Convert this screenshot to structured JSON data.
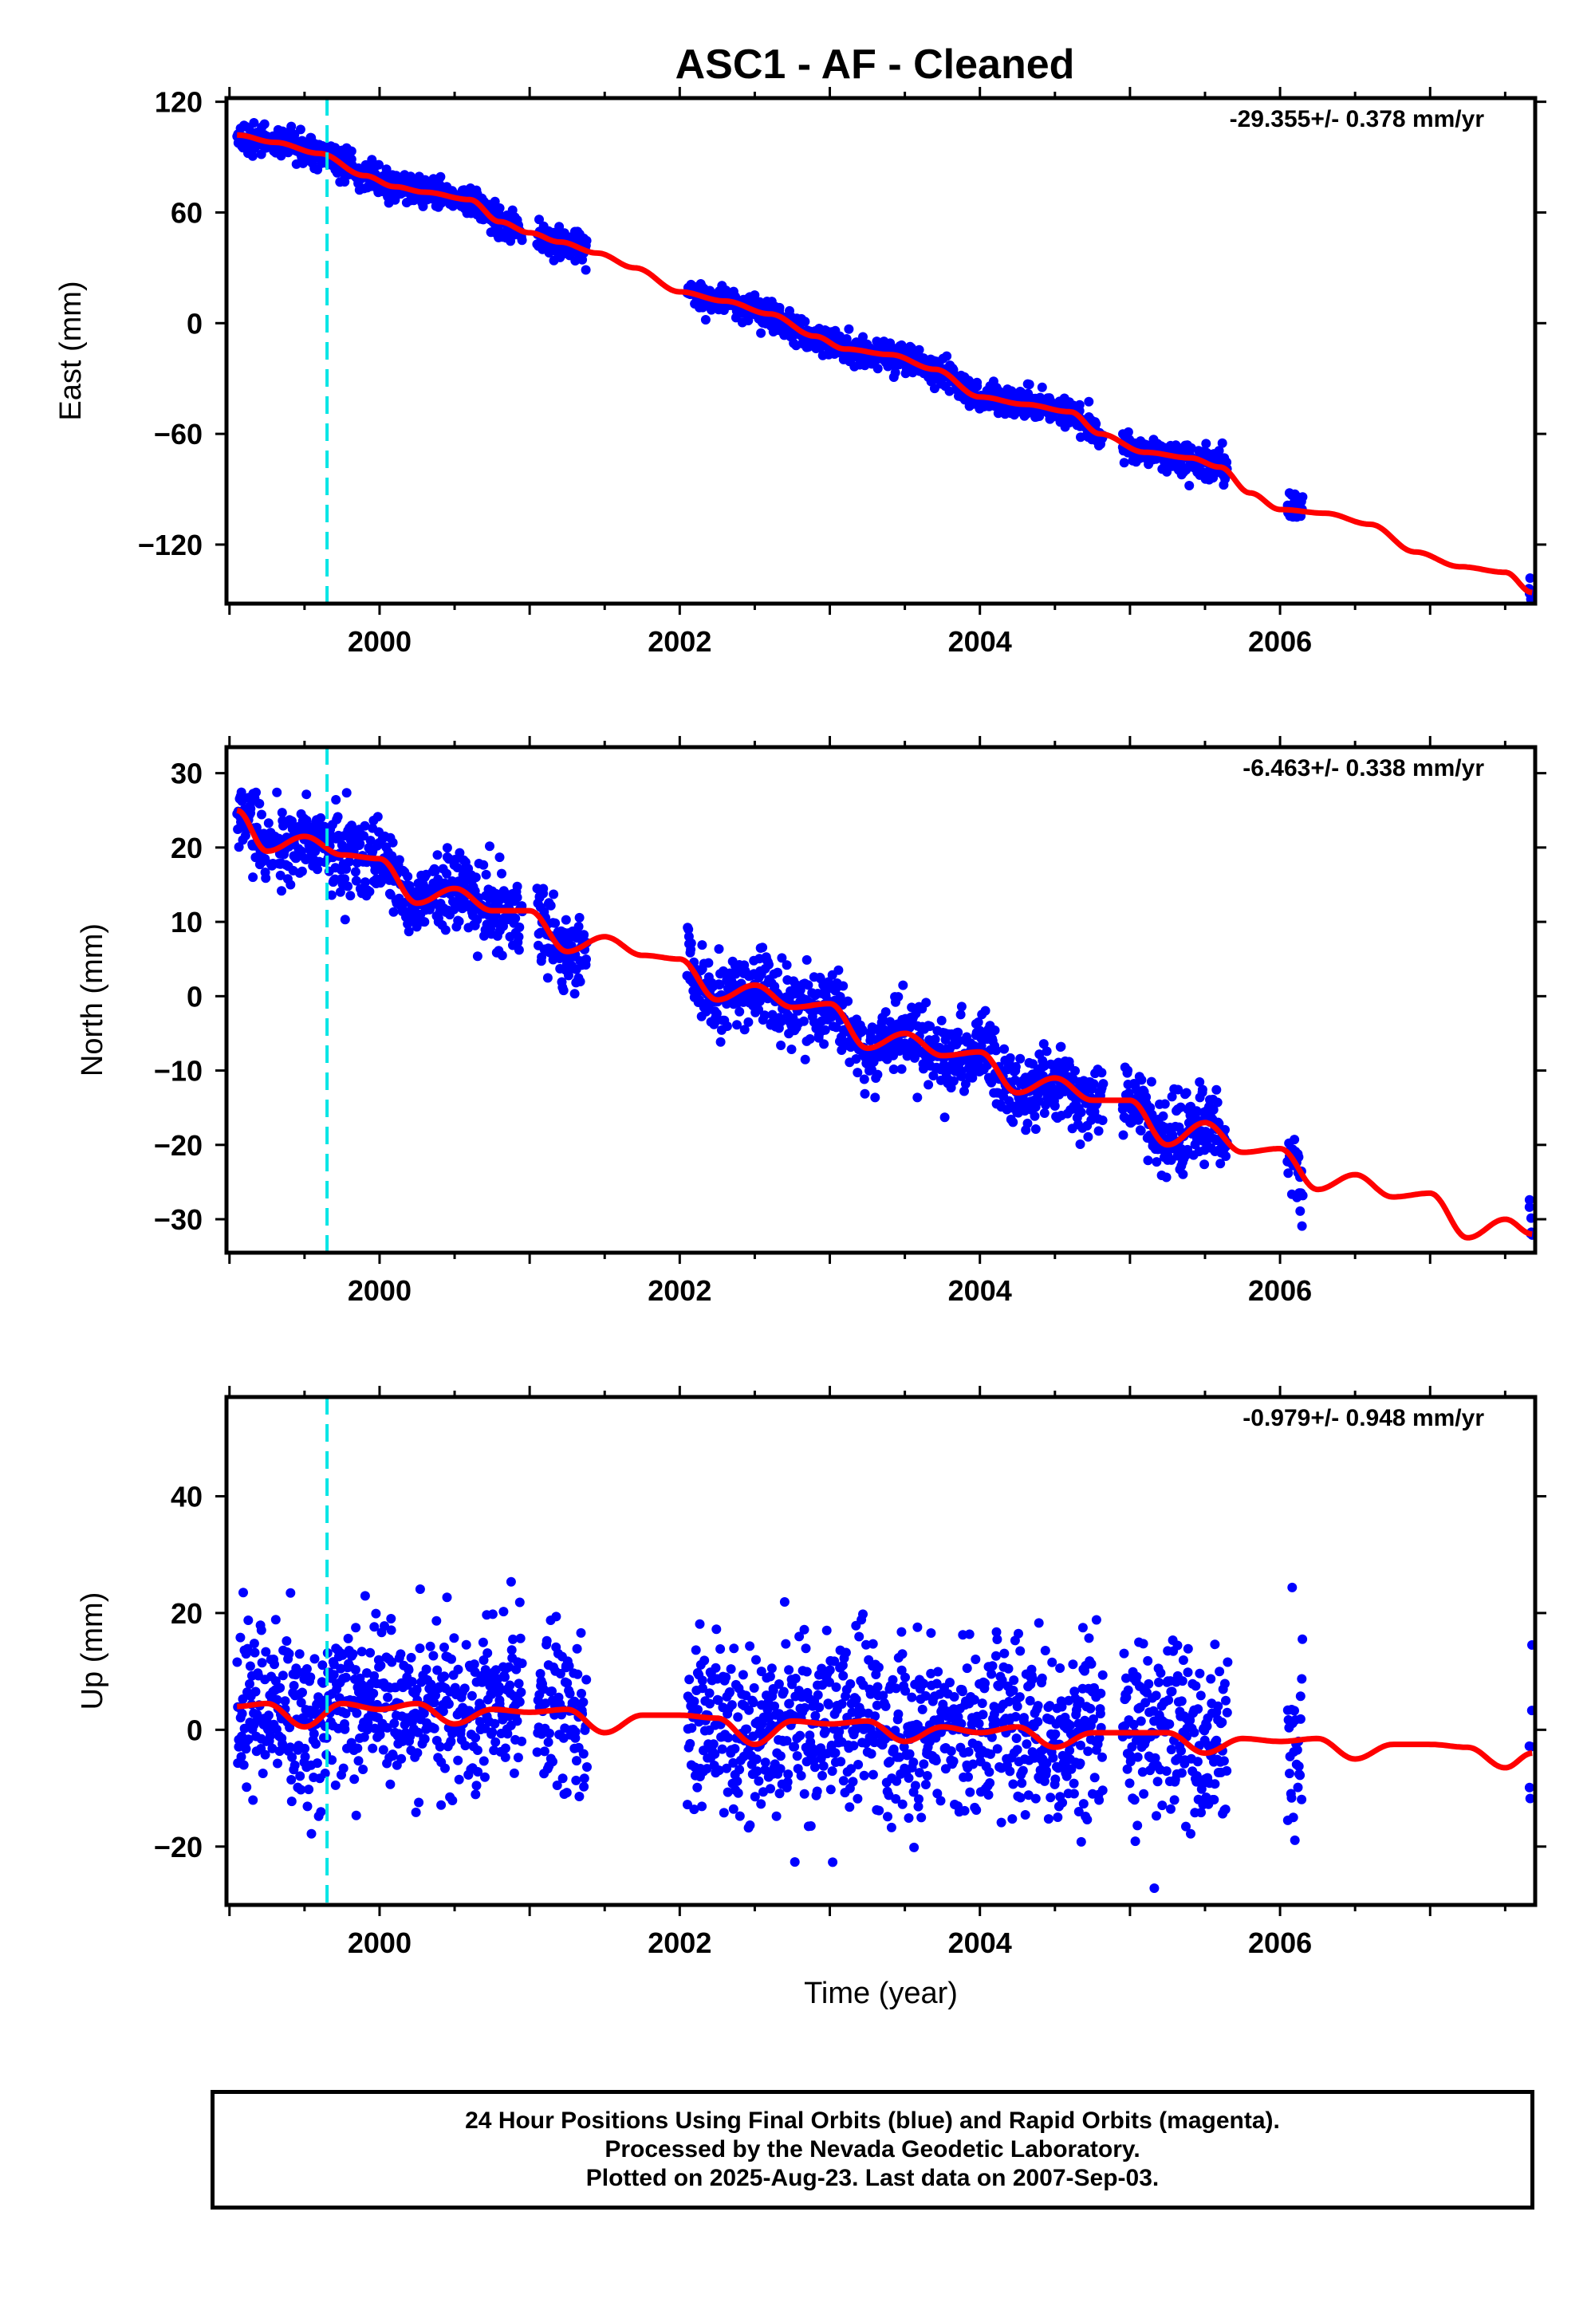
{
  "title": "ASC1  - AF - Cleaned",
  "footer": {
    "line1": "24 Hour Positions Using Final Orbits (blue) and Rapid Orbits (magenta).",
    "line2": "Processed by the Nevada Geodetic Laboratory.",
    "line3": "Plotted on 2025-Aug-23. Last data on 2007-Sep-03."
  },
  "colors": {
    "data": "#0000ff",
    "model": "#ff0000",
    "event": "#00e5e5",
    "frame": "#000000"
  },
  "chart_data": [
    {
      "type": "scatter",
      "component": "east",
      "ylabel": "East (mm)",
      "rate_label": "-29.355+/- 0.378 mm/yr",
      "xlim": [
        1998.98,
        2007.7
      ],
      "ylim": [
        -152,
        122
      ],
      "y_ticks": [
        120,
        60,
        0,
        -60,
        -120
      ],
      "y_tick_labels": [
        "120",
        "60",
        "0",
        "−60",
        "−120"
      ],
      "x_ticks": [
        2000,
        2002,
        2004,
        2006
      ],
      "x_tick_labels": [
        "2000",
        "2002",
        "2004",
        "2006"
      ],
      "event_line_x": 1999.65,
      "data_segments": [
        [
          1999.05,
          2000.95
        ],
        [
          2001.05,
          2001.38
        ],
        [
          2002.05,
          2004.82
        ],
        [
          2004.95,
          2005.65
        ],
        [
          2006.05,
          2006.15
        ],
        [
          2007.66,
          2007.68
        ]
      ],
      "scatter_sigma": 4,
      "fit": {
        "x": [
          1999.05,
          1999.3,
          1999.6,
          1999.9,
          2000.1,
          2000.3,
          2000.6,
          2000.8,
          2001.0,
          2001.2,
          2001.45,
          2001.7,
          2002.0,
          2002.3,
          2002.6,
          2002.9,
          2003.1,
          2003.4,
          2003.7,
          2004.0,
          2004.3,
          2004.6,
          2004.8,
          2005.1,
          2005.4,
          2005.6,
          2005.8,
          2006.0,
          2006.3,
          2006.6,
          2006.9,
          2007.2,
          2007.5,
          2007.68
        ],
        "y": [
          102,
          98,
          92,
          80,
          74,
          71,
          67,
          55,
          49,
          44,
          38,
          30,
          17,
          12,
          5,
          -7,
          -14,
          -17,
          -25,
          -40,
          -44,
          -48,
          -60,
          -70,
          -73,
          -78,
          -92,
          -101,
          -103,
          -109,
          -124,
          -132,
          -135,
          -146
        ]
      }
    },
    {
      "type": "scatter",
      "component": "north",
      "ylabel": "North (mm)",
      "rate_label": "-6.463+/- 0.338 mm/yr",
      "xlim": [
        1998.98,
        2007.7
      ],
      "ylim": [
        -34.5,
        33.5
      ],
      "y_ticks": [
        30,
        20,
        10,
        0,
        -10,
        -20,
        -30
      ],
      "y_tick_labels": [
        "30",
        "20",
        "10",
        "0",
        "−10",
        "−20",
        "−30"
      ],
      "x_ticks": [
        2000,
        2002,
        2004,
        2006
      ],
      "x_tick_labels": [
        "2000",
        "2002",
        "2004",
        "2006"
      ],
      "event_line_x": 1999.65,
      "data_segments": [
        [
          1999.05,
          2000.95
        ],
        [
          2001.05,
          2001.38
        ],
        [
          2002.05,
          2004.82
        ],
        [
          2004.95,
          2005.65
        ],
        [
          2006.05,
          2006.15
        ],
        [
          2007.66,
          2007.68
        ]
      ],
      "scatter_sigma": 2.6,
      "fit": {
        "x": [
          1999.05,
          1999.25,
          1999.5,
          1999.75,
          2000.0,
          2000.25,
          2000.5,
          2000.75,
          2001.0,
          2001.25,
          2001.5,
          2001.75,
          2002.0,
          2002.25,
          2002.5,
          2002.75,
          2003.0,
          2003.25,
          2003.5,
          2003.75,
          2004.0,
          2004.25,
          2004.5,
          2004.75,
          2005.0,
          2005.25,
          2005.5,
          2005.75,
          2006.0,
          2006.25,
          2006.5,
          2006.75,
          2007.0,
          2007.25,
          2007.5,
          2007.68
        ],
        "y": [
          25,
          19.5,
          21.5,
          19,
          18.5,
          12.5,
          14.5,
          11.5,
          11.5,
          6,
          8,
          5.5,
          5,
          -0.5,
          1.5,
          -1.5,
          -1,
          -7,
          -5,
          -8,
          -7.5,
          -13,
          -11,
          -14,
          -14,
          -20,
          -17,
          -21,
          -20.5,
          -26,
          -24,
          -27,
          -26.5,
          -32.5,
          -30,
          -32
        ]
      }
    },
    {
      "type": "scatter",
      "component": "up",
      "ylabel": "Up (mm)",
      "xlabel": "Time (year)",
      "rate_label": "-0.979+/- 0.948 mm/yr",
      "xlim": [
        1998.98,
        2007.7
      ],
      "ylim": [
        -30,
        57
      ],
      "y_ticks": [
        40,
        20,
        0,
        -20
      ],
      "y_tick_labels": [
        "40",
        "20",
        "0",
        "−20"
      ],
      "x_ticks": [
        2000,
        2002,
        2004,
        2006
      ],
      "x_tick_labels": [
        "2000",
        "2002",
        "2004",
        "2006"
      ],
      "event_line_x": 1999.65,
      "data_segments": [
        [
          1999.05,
          2000.95
        ],
        [
          2001.05,
          2001.38
        ],
        [
          2002.05,
          2004.82
        ],
        [
          2004.95,
          2005.65
        ],
        [
          2006.05,
          2006.15
        ],
        [
          2007.66,
          2007.68
        ]
      ],
      "scatter_sigma": 7.5,
      "fit": {
        "x": [
          1999.05,
          1999.25,
          1999.5,
          1999.75,
          2000.0,
          2000.25,
          2000.5,
          2000.75,
          2001.0,
          2001.25,
          2001.5,
          2001.75,
          2002.0,
          2002.25,
          2002.5,
          2002.75,
          2003.0,
          2003.25,
          2003.5,
          2003.75,
          2004.0,
          2004.25,
          2004.5,
          2004.75,
          2005.0,
          2005.25,
          2005.5,
          2005.75,
          2006.0,
          2006.25,
          2006.5,
          2006.75,
          2007.0,
          2007.25,
          2007.5,
          2007.68
        ],
        "y": [
          4,
          4.5,
          0.5,
          4.5,
          3.5,
          4.5,
          1,
          3.5,
          3,
          3.5,
          -0.5,
          2.5,
          2.5,
          2,
          -2.5,
          1.5,
          1,
          1.5,
          -2,
          0.5,
          -0.5,
          0.5,
          -3,
          -0.5,
          -0.5,
          -0.5,
          -4,
          -1.5,
          -2,
          -1.5,
          -5,
          -2.5,
          -2.5,
          -3,
          -6.5,
          -4
        ]
      }
    }
  ]
}
